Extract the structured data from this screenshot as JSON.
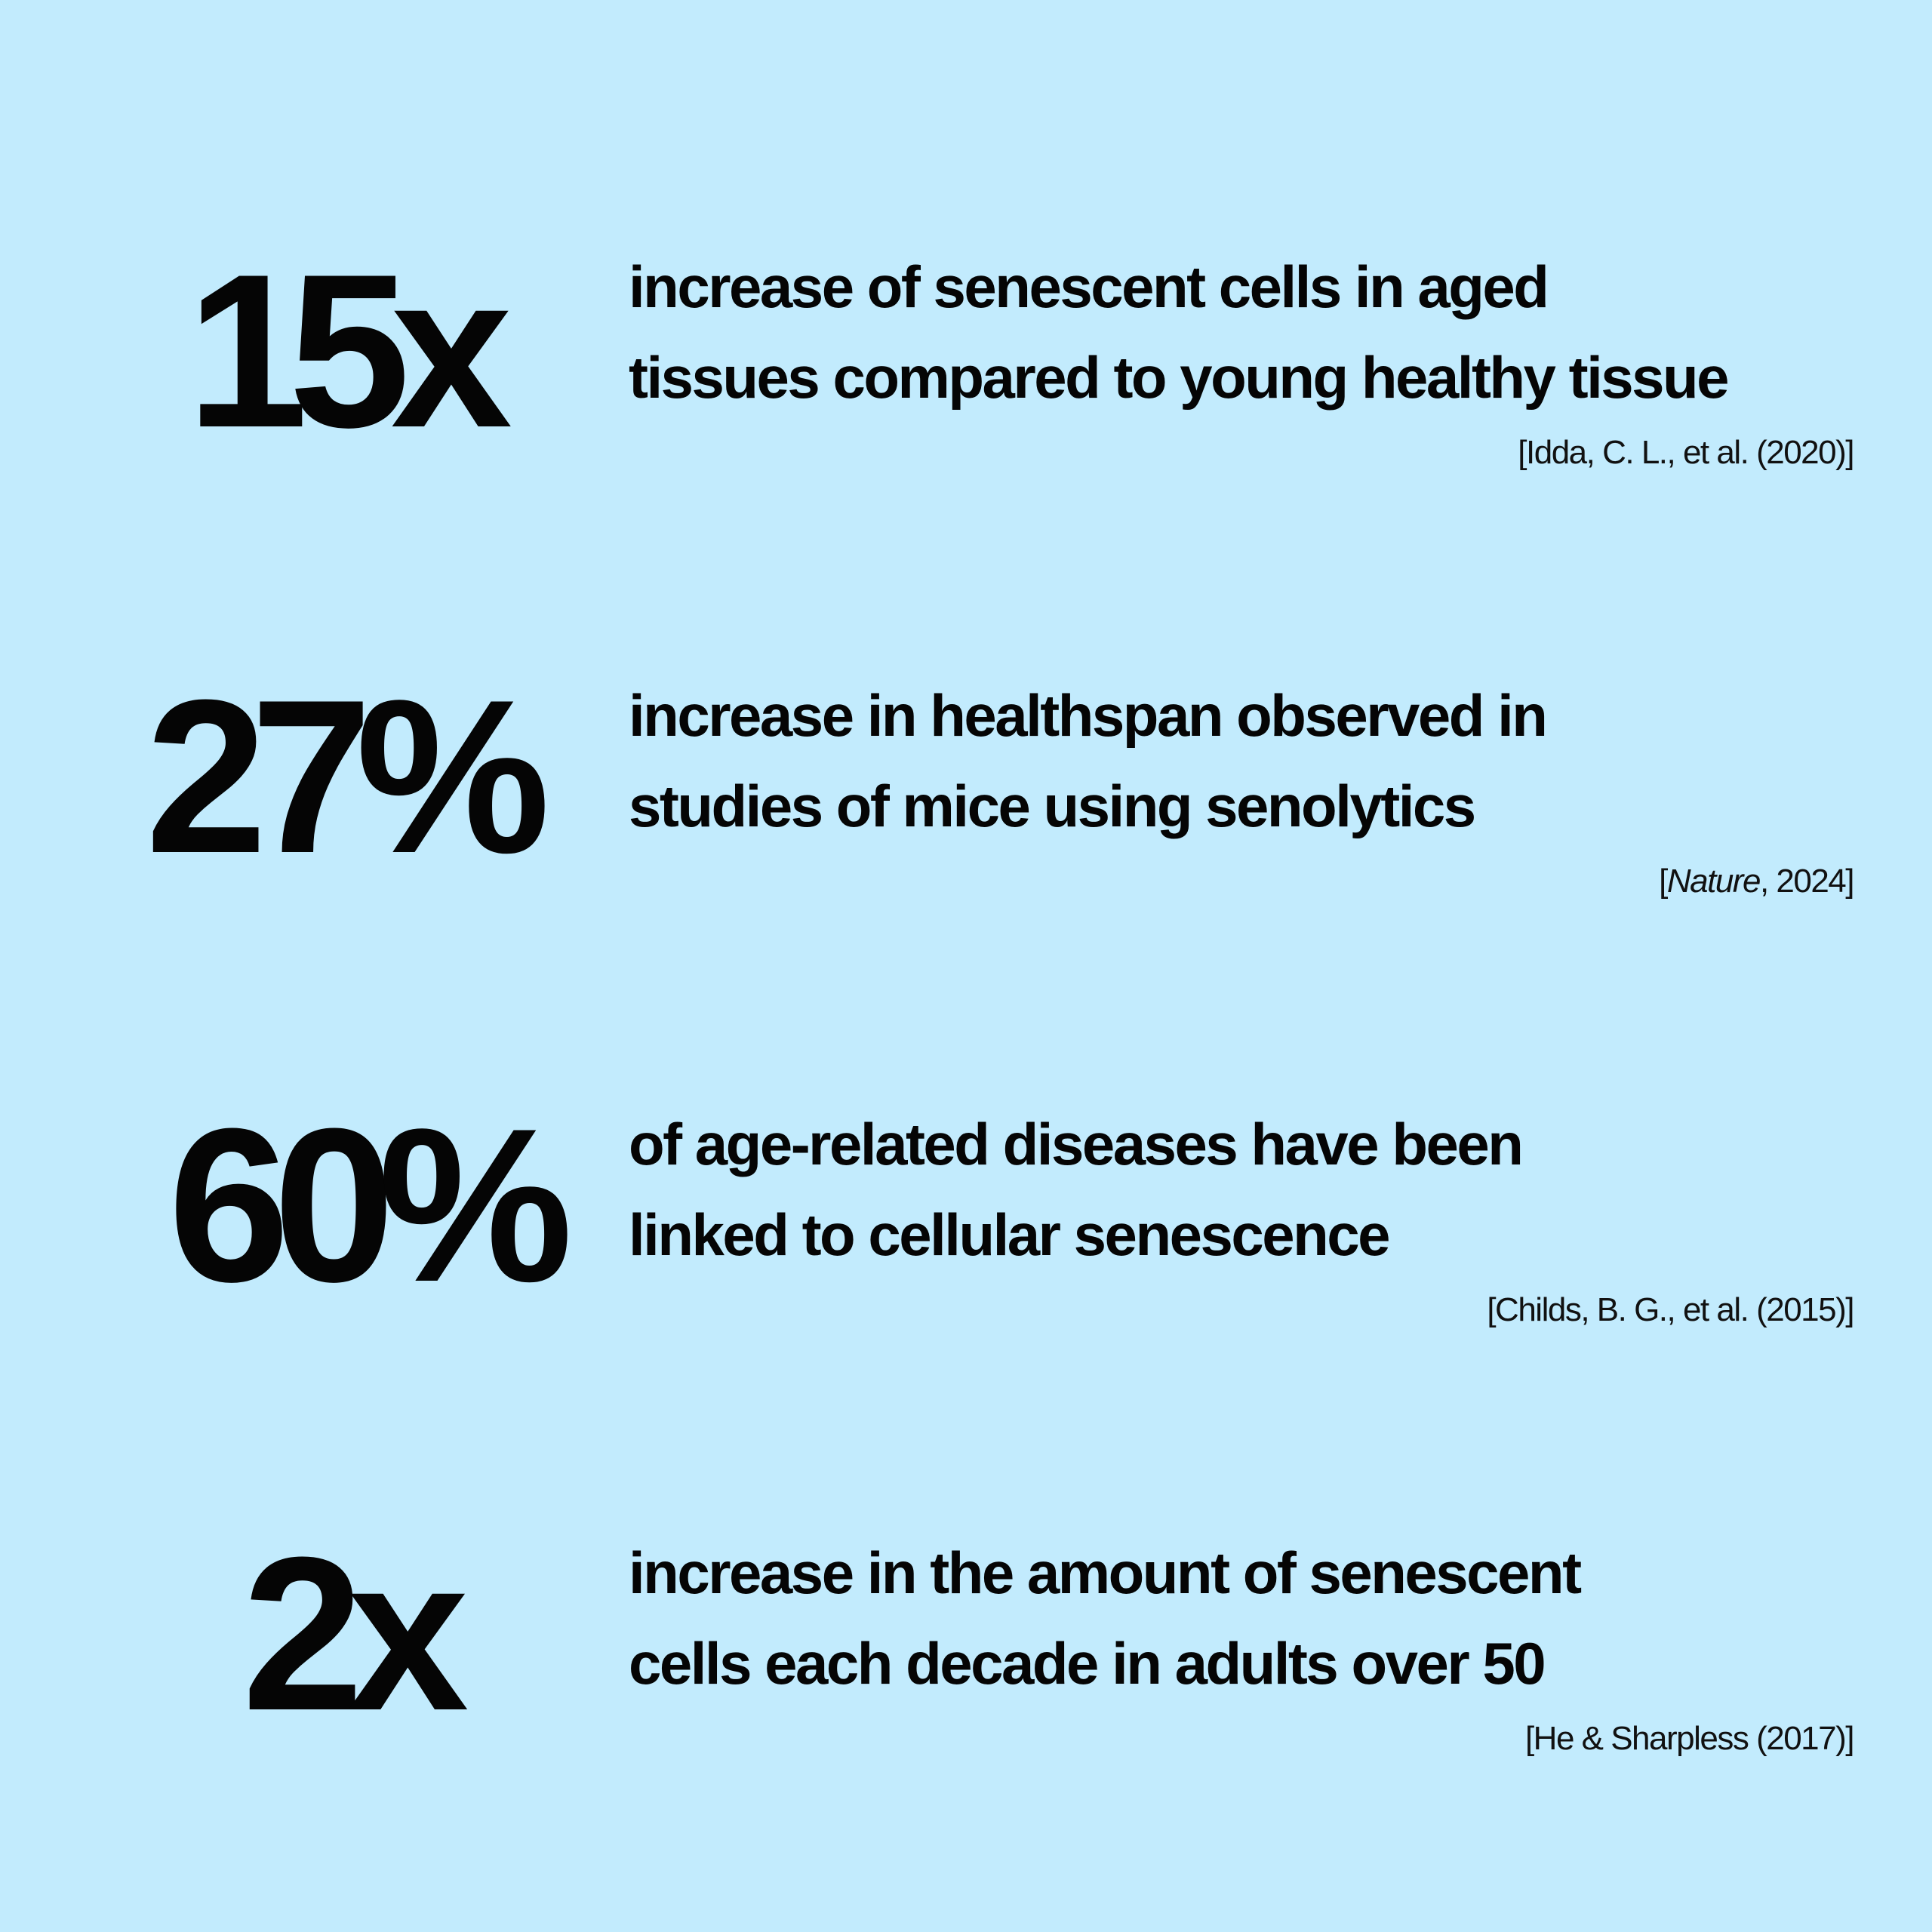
{
  "stats": [
    {
      "value": "15x",
      "description": [
        "increase of senescent cells in aged",
        "tissues compared to young healthy tissue"
      ],
      "source": "[Idda, C. L., et al. (2020)]"
    },
    {
      "value": "27%",
      "description": [
        "increase in healthspan observed in",
        "studies of mice using senolytics"
      ],
      "source_open": "[",
      "source_journal": "Nature",
      "source_rest": ", 2024]"
    },
    {
      "value": "60%",
      "description": [
        "of age-related diseases have been",
        "linked to cellular senescence"
      ],
      "source": "[Childs, B. G., et al. (2015)]"
    },
    {
      "value": "2x",
      "description": [
        "increase in the amount of senescent",
        "cells each decade in adults over 50"
      ],
      "source": "[He & Sharpless (2017)]"
    }
  ]
}
